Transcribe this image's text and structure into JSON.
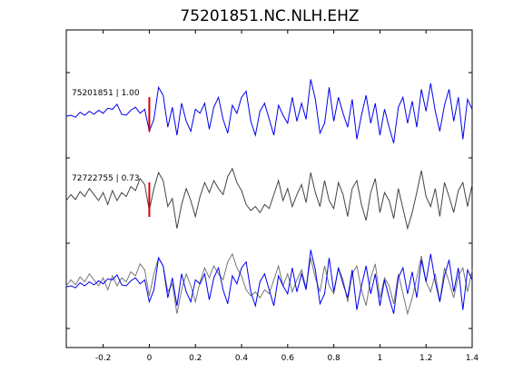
{
  "chart_data": {
    "type": "line",
    "title": "75201851.NC.NLH.EHZ",
    "xlabel": "",
    "ylabel": "",
    "xlim": [
      -0.36,
      1.4
    ],
    "xticks": [
      -0.2,
      0,
      0.2,
      0.4,
      0.6,
      0.8,
      1,
      1.2,
      1.4
    ],
    "xtick_labels": [
      "-0.2",
      "0",
      "0.2",
      "0.4",
      "0.6",
      "0.8",
      "1",
      "1.2",
      "1.4"
    ],
    "grid": false,
    "pick_time": 0,
    "colors": {
      "primary": "#0000ee",
      "secondary": "#444444",
      "overlay_secondary": "#777777",
      "pick": "#dd0000",
      "axes": "#000000"
    },
    "traces": [
      {
        "label": "75201851 | 1.00",
        "color": "#0000ee",
        "points": [
          [
            -0.36,
            -0.05
          ],
          [
            -0.34,
            0.0
          ],
          [
            -0.32,
            -0.1
          ],
          [
            -0.3,
            0.15
          ],
          [
            -0.28,
            0.0
          ],
          [
            -0.26,
            0.2
          ],
          [
            -0.24,
            0.05
          ],
          [
            -0.22,
            0.25
          ],
          [
            -0.2,
            0.1
          ],
          [
            -0.18,
            0.35
          ],
          [
            -0.16,
            0.3
          ],
          [
            -0.14,
            0.55
          ],
          [
            -0.12,
            0.05
          ],
          [
            -0.1,
            0.0
          ],
          [
            -0.08,
            0.25
          ],
          [
            -0.06,
            0.4
          ],
          [
            -0.04,
            0.1
          ],
          [
            -0.02,
            0.3
          ],
          [
            0.0,
            -0.8
          ],
          [
            0.02,
            -0.2
          ],
          [
            0.04,
            1.4
          ],
          [
            0.06,
            1.0
          ],
          [
            0.08,
            -0.6
          ],
          [
            0.1,
            0.4
          ],
          [
            0.12,
            -1.0
          ],
          [
            0.14,
            0.6
          ],
          [
            0.16,
            -0.3
          ],
          [
            0.18,
            -0.8
          ],
          [
            0.2,
            0.3
          ],
          [
            0.22,
            0.1
          ],
          [
            0.24,
            0.6
          ],
          [
            0.26,
            -0.7
          ],
          [
            0.28,
            0.4
          ],
          [
            0.3,
            0.9
          ],
          [
            0.32,
            -0.2
          ],
          [
            0.34,
            -0.9
          ],
          [
            0.36,
            0.5
          ],
          [
            0.38,
            0.1
          ],
          [
            0.4,
            0.9
          ],
          [
            0.42,
            1.2
          ],
          [
            0.44,
            -0.3
          ],
          [
            0.46,
            -1.0
          ],
          [
            0.48,
            0.2
          ],
          [
            0.5,
            0.6
          ],
          [
            0.52,
            -0.2
          ],
          [
            0.54,
            -1.0
          ],
          [
            0.56,
            0.5
          ],
          [
            0.58,
            0.0
          ],
          [
            0.6,
            -0.4
          ],
          [
            0.62,
            0.9
          ],
          [
            0.64,
            -0.3
          ],
          [
            0.66,
            0.6
          ],
          [
            0.68,
            -0.2
          ],
          [
            0.7,
            1.8
          ],
          [
            0.72,
            0.8
          ],
          [
            0.74,
            -0.9
          ],
          [
            0.76,
            -0.4
          ],
          [
            0.78,
            1.4
          ],
          [
            0.8,
            -0.3
          ],
          [
            0.82,
            0.9
          ],
          [
            0.84,
            0.1
          ],
          [
            0.86,
            -0.6
          ],
          [
            0.88,
            0.8
          ],
          [
            0.9,
            -1.2
          ],
          [
            0.92,
            0.0
          ],
          [
            0.94,
            1.0
          ],
          [
            0.96,
            -0.4
          ],
          [
            0.98,
            0.6
          ],
          [
            1.0,
            -1.0
          ],
          [
            1.02,
            0.3
          ],
          [
            1.04,
            -0.6
          ],
          [
            1.06,
            -1.4
          ],
          [
            1.08,
            0.4
          ],
          [
            1.1,
            0.9
          ],
          [
            1.12,
            -0.4
          ],
          [
            1.14,
            0.7
          ],
          [
            1.16,
            -0.6
          ],
          [
            1.18,
            1.3
          ],
          [
            1.2,
            0.2
          ],
          [
            1.22,
            1.6
          ],
          [
            1.24,
            0.2
          ],
          [
            1.26,
            -0.8
          ],
          [
            1.28,
            0.5
          ],
          [
            1.3,
            1.3
          ],
          [
            1.32,
            -0.3
          ],
          [
            1.34,
            0.9
          ],
          [
            1.36,
            -1.2
          ],
          [
            1.38,
            0.8
          ],
          [
            1.4,
            0.3
          ]
        ]
      },
      {
        "label": "72722755 | 0.73",
        "color": "#444444",
        "points": [
          [
            -0.36,
            0.0
          ],
          [
            -0.34,
            0.3
          ],
          [
            -0.32,
            0.05
          ],
          [
            -0.3,
            0.45
          ],
          [
            -0.28,
            0.2
          ],
          [
            -0.26,
            0.6
          ],
          [
            -0.24,
            0.3
          ],
          [
            -0.22,
            0.0
          ],
          [
            -0.2,
            0.4
          ],
          [
            -0.18,
            -0.2
          ],
          [
            -0.16,
            0.5
          ],
          [
            -0.14,
            0.0
          ],
          [
            -0.12,
            0.4
          ],
          [
            -0.1,
            0.2
          ],
          [
            -0.08,
            0.7
          ],
          [
            -0.06,
            0.5
          ],
          [
            -0.04,
            1.1
          ],
          [
            -0.02,
            0.8
          ],
          [
            0.0,
            -0.5
          ],
          [
            0.02,
            0.6
          ],
          [
            0.04,
            1.4
          ],
          [
            0.06,
            1.0
          ],
          [
            0.08,
            -0.3
          ],
          [
            0.1,
            0.1
          ],
          [
            0.12,
            -1.4
          ],
          [
            0.14,
            -0.2
          ],
          [
            0.16,
            0.6
          ],
          [
            0.18,
            0.0
          ],
          [
            0.2,
            -0.8
          ],
          [
            0.22,
            0.2
          ],
          [
            0.24,
            0.9
          ],
          [
            0.26,
            0.4
          ],
          [
            0.28,
            1.0
          ],
          [
            0.3,
            0.6
          ],
          [
            0.32,
            0.3
          ],
          [
            0.34,
            1.2
          ],
          [
            0.36,
            1.6
          ],
          [
            0.38,
            0.9
          ],
          [
            0.4,
            0.5
          ],
          [
            0.42,
            -0.2
          ],
          [
            0.44,
            -0.5
          ],
          [
            0.46,
            -0.3
          ],
          [
            0.48,
            -0.6
          ],
          [
            0.5,
            -0.2
          ],
          [
            0.52,
            -0.4
          ],
          [
            0.54,
            0.3
          ],
          [
            0.56,
            1.0
          ],
          [
            0.58,
            0.0
          ],
          [
            0.6,
            0.6
          ],
          [
            0.62,
            -0.3
          ],
          [
            0.64,
            0.3
          ],
          [
            0.66,
            0.8
          ],
          [
            0.68,
            -0.1
          ],
          [
            0.7,
            1.4
          ],
          [
            0.72,
            0.4
          ],
          [
            0.74,
            -0.3
          ],
          [
            0.76,
            1.0
          ],
          [
            0.78,
            0.0
          ],
          [
            0.8,
            -0.4
          ],
          [
            0.82,
            0.9
          ],
          [
            0.84,
            0.3
          ],
          [
            0.86,
            -0.8
          ],
          [
            0.88,
            0.6
          ],
          [
            0.9,
            1.0
          ],
          [
            0.92,
            -0.2
          ],
          [
            0.94,
            -1.0
          ],
          [
            0.96,
            0.4
          ],
          [
            0.98,
            1.1
          ],
          [
            1.0,
            -0.6
          ],
          [
            1.02,
            0.4
          ],
          [
            1.04,
            0.0
          ],
          [
            1.06,
            -0.9
          ],
          [
            1.08,
            0.6
          ],
          [
            1.1,
            -0.4
          ],
          [
            1.12,
            -1.4
          ],
          [
            1.14,
            -0.6
          ],
          [
            1.16,
            0.4
          ],
          [
            1.18,
            1.5
          ],
          [
            1.2,
            0.2
          ],
          [
            1.22,
            -0.3
          ],
          [
            1.24,
            0.6
          ],
          [
            1.26,
            -0.8
          ],
          [
            1.28,
            0.9
          ],
          [
            1.3,
            0.2
          ],
          [
            1.32,
            -0.6
          ],
          [
            1.34,
            0.5
          ],
          [
            1.36,
            0.9
          ],
          [
            1.38,
            -0.3
          ],
          [
            1.4,
            0.8
          ]
        ]
      }
    ]
  }
}
